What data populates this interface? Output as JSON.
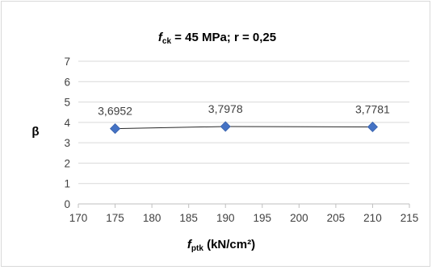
{
  "chart_data": {
    "type": "line",
    "title": {
      "main_var": "f",
      "main_sub": "ck",
      "rest": " = 45 MPa; r = 0,25"
    },
    "xlabel": {
      "main_var": "f",
      "main_sub": "ptk",
      "rest": " (kN/cm²)"
    },
    "ylabel": "β",
    "xlim": [
      170,
      215
    ],
    "ylim": [
      0,
      7
    ],
    "x_ticks": [
      "170",
      "175",
      "180",
      "185",
      "190",
      "195",
      "200",
      "205",
      "210",
      "215"
    ],
    "y_ticks": [
      "0",
      "1",
      "2",
      "3",
      "4",
      "5",
      "6",
      "7"
    ],
    "grid": true,
    "series": [
      {
        "x": [
          175,
          190,
          210
        ],
        "y": [
          3.6952,
          3.7978,
          3.7781
        ],
        "labels": [
          "3,6952",
          "3,7978",
          "3,7781"
        ],
        "marker": "diamond",
        "color": "#4472c4",
        "line_color": "#262626"
      }
    ]
  }
}
